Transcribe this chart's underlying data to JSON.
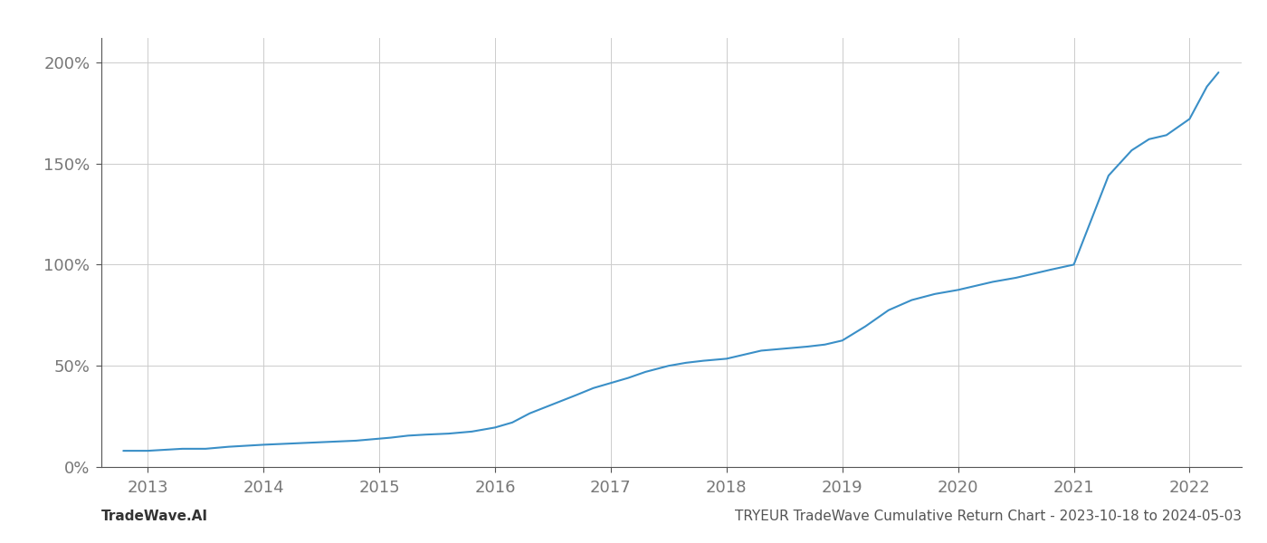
{
  "title": "TRYEUR TradeWave Cumulative Return Chart - 2023-10-18 to 2024-05-03",
  "watermark": "TradeWave.AI",
  "line_color": "#3a8fc7",
  "background_color": "#ffffff",
  "grid_color": "#cccccc",
  "x_years": [
    2013,
    2014,
    2015,
    2016,
    2017,
    2018,
    2019,
    2020,
    2021,
    2022
  ],
  "x_data": [
    2012.79,
    2013.0,
    2013.15,
    2013.3,
    2013.5,
    2013.7,
    2013.85,
    2014.0,
    2014.2,
    2014.4,
    2014.6,
    2014.8,
    2015.0,
    2015.1,
    2015.25,
    2015.4,
    2015.6,
    2015.8,
    2016.0,
    2016.15,
    2016.3,
    2016.5,
    2016.7,
    2016.85,
    2017.0,
    2017.15,
    2017.3,
    2017.5,
    2017.65,
    2017.8,
    2018.0,
    2018.15,
    2018.3,
    2018.5,
    2018.7,
    2018.85,
    2019.0,
    2019.2,
    2019.4,
    2019.6,
    2019.8,
    2020.0,
    2020.15,
    2020.3,
    2020.5,
    2020.65,
    2020.8,
    2021.0,
    2021.15,
    2021.3,
    2021.5,
    2021.65,
    2021.8,
    2022.0,
    2022.15,
    2022.25
  ],
  "y_data": [
    0.08,
    0.08,
    0.085,
    0.09,
    0.09,
    0.1,
    0.105,
    0.11,
    0.115,
    0.12,
    0.125,
    0.13,
    0.14,
    0.145,
    0.155,
    0.16,
    0.165,
    0.175,
    0.195,
    0.22,
    0.265,
    0.31,
    0.355,
    0.39,
    0.415,
    0.44,
    0.47,
    0.5,
    0.515,
    0.525,
    0.535,
    0.555,
    0.575,
    0.585,
    0.595,
    0.605,
    0.625,
    0.695,
    0.775,
    0.825,
    0.855,
    0.875,
    0.895,
    0.915,
    0.935,
    0.955,
    0.975,
    1.0,
    1.22,
    1.44,
    1.565,
    1.62,
    1.64,
    1.72,
    1.88,
    1.95
  ],
  "yticks": [
    0.0,
    0.5,
    1.0,
    1.5,
    2.0
  ],
  "ytick_labels": [
    "0%",
    "50%",
    "100%",
    "150%",
    "200%"
  ],
  "ylim": [
    0.0,
    2.12
  ],
  "xlim": [
    2012.6,
    2022.45
  ],
  "line_width": 1.5,
  "title_fontsize": 11,
  "watermark_fontsize": 11,
  "tick_fontsize": 13,
  "spine_color": "#555555"
}
